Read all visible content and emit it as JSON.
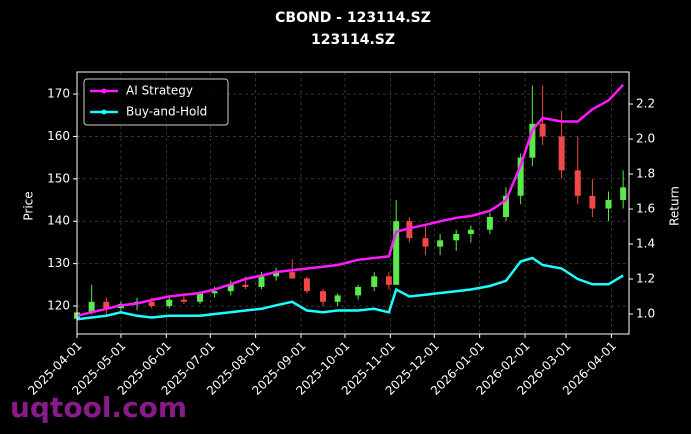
{
  "chart_data": {
    "type": "candlestick",
    "title": "CBOND - 123114.SZ",
    "subtitle": "123114.SZ",
    "ylabel": "Price",
    "y2label": "Return",
    "watermark": "uqtool.com",
    "x": [
      "2025-04-01",
      "2025-04-11",
      "2025-04-21",
      "2025-05-01",
      "2025-05-12",
      "2025-05-22",
      "2025-06-03",
      "2025-06-13",
      "2025-06-24",
      "2025-07-04",
      "2025-07-15",
      "2025-07-25",
      "2025-08-05",
      "2025-08-15",
      "2025-08-26",
      "2025-09-05",
      "2025-09-16",
      "2025-09-26",
      "2025-10-10",
      "2025-10-21",
      "2025-10-31",
      "2025-11-05",
      "2025-11-14",
      "2025-11-25",
      "2025-12-05",
      "2025-12-16",
      "2025-12-26",
      "2026-01-08",
      "2026-01-19",
      "2026-01-29",
      "2026-02-06",
      "2026-02-13",
      "2026-02-26",
      "2026-03-09",
      "2026-03-19",
      "2026-03-30",
      "2026-04-09"
    ],
    "open": [
      117,
      118.5,
      121,
      119.5,
      120.5,
      121,
      120,
      121.5,
      121,
      123,
      123.5,
      125,
      124.5,
      127,
      128,
      126.5,
      123.5,
      121,
      122.5,
      124.5,
      127,
      125,
      140,
      136,
      134,
      135.5,
      137,
      138,
      141,
      146,
      155,
      163,
      160,
      152,
      146,
      143,
      145
    ],
    "high": [
      119,
      125,
      122,
      121,
      122,
      122,
      122,
      123,
      123.5,
      124.5,
      126,
      127,
      128,
      129,
      131,
      127,
      124,
      123,
      125,
      128,
      128,
      145,
      141,
      139,
      137,
      138,
      139,
      142,
      148,
      156,
      172,
      172,
      166,
      160,
      150,
      147,
      152
    ],
    "low": [
      116,
      118,
      118,
      118.5,
      119,
      119.5,
      119.5,
      120.5,
      120.5,
      122,
      122.5,
      124,
      124,
      126,
      126.5,
      123,
      120,
      120,
      121.5,
      123.5,
      124,
      125,
      135,
      132,
      132,
      133,
      135,
      137,
      140,
      144,
      153,
      158,
      150,
      144,
      141,
      140,
      143
    ],
    "close": [
      118.5,
      121,
      119.5,
      120.5,
      121,
      120,
      121.5,
      121,
      123,
      123.5,
      125,
      124.5,
      127,
      128,
      126.5,
      123.5,
      121,
      122.5,
      124.5,
      127,
      125,
      140,
      136,
      134,
      135.5,
      137,
      138,
      141,
      146,
      155,
      163,
      160,
      152,
      146,
      143,
      145,
      148
    ],
    "up_color": "#5be84a",
    "down_color": "#f04848",
    "series": [
      {
        "name": "AI Strategy",
        "color": "#ff1aff",
        "axis": "y2",
        "values": [
          0.99,
          1.01,
          1.03,
          1.05,
          1.06,
          1.08,
          1.1,
          1.11,
          1.12,
          1.14,
          1.17,
          1.2,
          1.22,
          1.24,
          1.25,
          1.26,
          1.27,
          1.28,
          1.31,
          1.32,
          1.33,
          1.47,
          1.49,
          1.51,
          1.53,
          1.55,
          1.56,
          1.59,
          1.65,
          1.85,
          2.05,
          2.12,
          2.1,
          2.1,
          2.17,
          2.22,
          2.31
        ]
      },
      {
        "name": "Buy-and-Hold",
        "color": "#1affff",
        "axis": "y2",
        "values": [
          0.97,
          0.98,
          0.99,
          1.01,
          0.99,
          0.98,
          0.99,
          0.99,
          0.99,
          1.0,
          1.01,
          1.02,
          1.03,
          1.05,
          1.07,
          1.02,
          1.01,
          1.02,
          1.02,
          1.03,
          1.01,
          1.14,
          1.1,
          1.11,
          1.12,
          1.13,
          1.14,
          1.16,
          1.19,
          1.3,
          1.32,
          1.28,
          1.26,
          1.2,
          1.17,
          1.17,
          1.22
        ]
      }
    ],
    "xlim": [
      "2025-04-01",
      "2026-04-13"
    ],
    "xticks": [
      "2025-04-01",
      "2025-05-01",
      "2025-06-01",
      "2025-07-01",
      "2025-08-01",
      "2025-09-01",
      "2025-10-01",
      "2025-11-01",
      "2025-12-01",
      "2026-01-01",
      "2026-02-01",
      "2026-03-01",
      "2026-04-01"
    ],
    "ylim": [
      113.4,
      175.2
    ],
    "yticks": [
      120,
      130,
      140,
      150,
      160,
      170
    ],
    "y2lim": [
      0.886,
      2.383
    ],
    "y2ticks": [
      {
        "value": 1.0,
        "label": "1.0"
      },
      {
        "value": 1.2,
        "label": "1.2"
      },
      {
        "value": 1.4,
        "label": "1.4"
      },
      {
        "value": 1.6,
        "label": "1.6"
      },
      {
        "value": 1.8,
        "label": "1.8"
      },
      {
        "value": 2.0,
        "label": "2.0"
      },
      {
        "value": 2.2,
        "label": "2.2"
      }
    ],
    "grid": true,
    "legend": "upper left"
  }
}
